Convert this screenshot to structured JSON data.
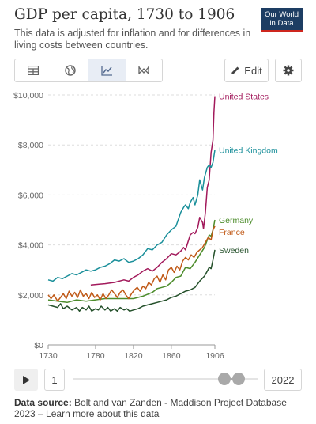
{
  "header": {
    "title": "GDP per capita, 1730 to 1906",
    "subtitle": "This data is adjusted for inflation and for differences in living costs between countries.",
    "logo_line1": "Our World",
    "logo_line2": "in Data"
  },
  "toolbar": {
    "tabs": [
      {
        "name": "table",
        "icon": "table-icon"
      },
      {
        "name": "map",
        "icon": "globe-icon"
      },
      {
        "name": "chart",
        "icon": "line-chart-icon",
        "active": true
      },
      {
        "name": "marimekko",
        "icon": "marimekko-icon"
      }
    ],
    "edit_label": "Edit",
    "settings_icon": "gear-icon"
  },
  "timeline": {
    "start_year": "1",
    "end_year": "2022"
  },
  "source": {
    "label": "Data source:",
    "text": "Bolt and van Zanden - Maddison Project Database 2023 –",
    "link_text": "Learn more about this data"
  },
  "chart_data": {
    "type": "line",
    "title": "GDP per capita, 1730 to 1906",
    "xlim": [
      1730,
      1906
    ],
    "ylim": [
      0,
      10000
    ],
    "yticks": [
      0,
      2000,
      4000,
      6000,
      8000,
      10000
    ],
    "ytick_labels": [
      "$0",
      "$2,000",
      "$4,000",
      "$6,000",
      "$8,000",
      "$10,000"
    ],
    "xticks": [
      1730,
      1780,
      1820,
      1860,
      1906
    ],
    "xtick_labels": [
      "1730",
      "1780",
      "1820",
      "1860",
      "1906"
    ],
    "grid": "horizontal dashed",
    "legend": "line-end labels",
    "series": [
      {
        "name": "United States",
        "color": "#a2195b",
        "points": [
          [
            1775,
            2400
          ],
          [
            1790,
            2450
          ],
          [
            1800,
            2500
          ],
          [
            1810,
            2600
          ],
          [
            1815,
            2550
          ],
          [
            1820,
            2700
          ],
          [
            1825,
            2800
          ],
          [
            1830,
            2950
          ],
          [
            1835,
            3050
          ],
          [
            1840,
            2950
          ],
          [
            1845,
            3100
          ],
          [
            1850,
            3300
          ],
          [
            1855,
            3450
          ],
          [
            1860,
            3650
          ],
          [
            1865,
            3600
          ],
          [
            1870,
            3750
          ],
          [
            1873,
            3900
          ],
          [
            1875,
            3800
          ],
          [
            1880,
            4400
          ],
          [
            1883,
            4500
          ],
          [
            1885,
            4450
          ],
          [
            1888,
            4700
          ],
          [
            1890,
            5100
          ],
          [
            1893,
            4900
          ],
          [
            1894,
            4650
          ],
          [
            1896,
            5300
          ],
          [
            1898,
            6300
          ],
          [
            1900,
            6600
          ],
          [
            1902,
            7700
          ],
          [
            1904,
            8200
          ],
          [
            1905,
            9300
          ],
          [
            1906,
            9950
          ]
        ]
      },
      {
        "name": "United Kingdom",
        "color": "#1a8f9a",
        "points": [
          [
            1730,
            2600
          ],
          [
            1735,
            2550
          ],
          [
            1740,
            2700
          ],
          [
            1745,
            2650
          ],
          [
            1750,
            2750
          ],
          [
            1755,
            2850
          ],
          [
            1760,
            2800
          ],
          [
            1765,
            2900
          ],
          [
            1770,
            3000
          ],
          [
            1775,
            2950
          ],
          [
            1780,
            3000
          ],
          [
            1785,
            3100
          ],
          [
            1790,
            3150
          ],
          [
            1795,
            3250
          ],
          [
            1800,
            3400
          ],
          [
            1805,
            3350
          ],
          [
            1810,
            3450
          ],
          [
            1815,
            3300
          ],
          [
            1820,
            3350
          ],
          [
            1825,
            3450
          ],
          [
            1830,
            3600
          ],
          [
            1835,
            3850
          ],
          [
            1840,
            3800
          ],
          [
            1845,
            4000
          ],
          [
            1850,
            4100
          ],
          [
            1855,
            4400
          ],
          [
            1860,
            4600
          ],
          [
            1865,
            4750
          ],
          [
            1870,
            5300
          ],
          [
            1873,
            5500
          ],
          [
            1875,
            5600
          ],
          [
            1878,
            5450
          ],
          [
            1880,
            5700
          ],
          [
            1883,
            5900
          ],
          [
            1885,
            5600
          ],
          [
            1888,
            6000
          ],
          [
            1890,
            6600
          ],
          [
            1893,
            6200
          ],
          [
            1895,
            6700
          ],
          [
            1898,
            7100
          ],
          [
            1900,
            7200
          ],
          [
            1902,
            7100
          ],
          [
            1904,
            7300
          ],
          [
            1906,
            7800
          ]
        ]
      },
      {
        "name": "Germany",
        "color": "#4c8c2b",
        "points": [
          [
            1730,
            1800
          ],
          [
            1740,
            1750
          ],
          [
            1750,
            1700
          ],
          [
            1760,
            1800
          ],
          [
            1770,
            1750
          ],
          [
            1780,
            1800
          ],
          [
            1790,
            1850
          ],
          [
            1800,
            1850
          ],
          [
            1810,
            1850
          ],
          [
            1820,
            1850
          ],
          [
            1830,
            1950
          ],
          [
            1840,
            2100
          ],
          [
            1845,
            2250
          ],
          [
            1850,
            2300
          ],
          [
            1855,
            2350
          ],
          [
            1860,
            2500
          ],
          [
            1865,
            2700
          ],
          [
            1870,
            2750
          ],
          [
            1875,
            3100
          ],
          [
            1880,
            3050
          ],
          [
            1885,
            3300
          ],
          [
            1890,
            3600
          ],
          [
            1895,
            3900
          ],
          [
            1898,
            4200
          ],
          [
            1900,
            4400
          ],
          [
            1902,
            4350
          ],
          [
            1904,
            4600
          ],
          [
            1906,
            5000
          ]
        ]
      },
      {
        "name": "France",
        "color": "#c05917",
        "points": [
          [
            1730,
            2000
          ],
          [
            1733,
            1850
          ],
          [
            1736,
            2000
          ],
          [
            1740,
            1750
          ],
          [
            1743,
            1900
          ],
          [
            1746,
            2050
          ],
          [
            1749,
            1850
          ],
          [
            1752,
            2150
          ],
          [
            1755,
            1950
          ],
          [
            1758,
            2100
          ],
          [
            1761,
            1900
          ],
          [
            1764,
            2200
          ],
          [
            1767,
            1950
          ],
          [
            1770,
            2050
          ],
          [
            1773,
            1850
          ],
          [
            1776,
            2100
          ],
          [
            1779,
            1900
          ],
          [
            1782,
            2000
          ],
          [
            1785,
            1800
          ],
          [
            1788,
            2050
          ],
          [
            1791,
            1850
          ],
          [
            1794,
            2000
          ],
          [
            1797,
            2200
          ],
          [
            1800,
            2050
          ],
          [
            1803,
            1900
          ],
          [
            1806,
            2100
          ],
          [
            1809,
            2200
          ],
          [
            1812,
            2000
          ],
          [
            1815,
            1850
          ],
          [
            1818,
            2050
          ],
          [
            1821,
            2200
          ],
          [
            1824,
            2300
          ],
          [
            1827,
            2150
          ],
          [
            1830,
            2350
          ],
          [
            1833,
            2250
          ],
          [
            1836,
            2500
          ],
          [
            1839,
            2400
          ],
          [
            1842,
            2650
          ],
          [
            1845,
            2750
          ],
          [
            1848,
            2500
          ],
          [
            1851,
            2800
          ],
          [
            1854,
            2600
          ],
          [
            1857,
            3000
          ],
          [
            1860,
            3100
          ],
          [
            1863,
            2900
          ],
          [
            1866,
            3150
          ],
          [
            1869,
            3000
          ],
          [
            1872,
            3350
          ],
          [
            1875,
            3500
          ],
          [
            1878,
            3400
          ],
          [
            1881,
            3600
          ],
          [
            1884,
            3500
          ],
          [
            1887,
            3700
          ],
          [
            1890,
            3800
          ],
          [
            1893,
            3900
          ],
          [
            1896,
            4100
          ],
          [
            1899,
            4300
          ],
          [
            1902,
            4200
          ],
          [
            1904,
            4600
          ],
          [
            1906,
            4750
          ]
        ]
      },
      {
        "name": "Sweden",
        "color": "#24502a",
        "points": [
          [
            1730,
            1600
          ],
          [
            1735,
            1550
          ],
          [
            1740,
            1500
          ],
          [
            1743,
            1650
          ],
          [
            1746,
            1450
          ],
          [
            1750,
            1550
          ],
          [
            1755,
            1400
          ],
          [
            1760,
            1500
          ],
          [
            1763,
            1350
          ],
          [
            1766,
            1500
          ],
          [
            1770,
            1400
          ],
          [
            1773,
            1550
          ],
          [
            1776,
            1350
          ],
          [
            1780,
            1450
          ],
          [
            1783,
            1400
          ],
          [
            1786,
            1550
          ],
          [
            1790,
            1400
          ],
          [
            1793,
            1500
          ],
          [
            1796,
            1350
          ],
          [
            1800,
            1450
          ],
          [
            1803,
            1350
          ],
          [
            1806,
            1500
          ],
          [
            1810,
            1400
          ],
          [
            1813,
            1450
          ],
          [
            1816,
            1350
          ],
          [
            1820,
            1400
          ],
          [
            1825,
            1450
          ],
          [
            1830,
            1550
          ],
          [
            1835,
            1600
          ],
          [
            1840,
            1650
          ],
          [
            1845,
            1700
          ],
          [
            1850,
            1750
          ],
          [
            1855,
            1800
          ],
          [
            1860,
            1900
          ],
          [
            1865,
            1950
          ],
          [
            1870,
            2050
          ],
          [
            1875,
            2150
          ],
          [
            1880,
            2200
          ],
          [
            1885,
            2300
          ],
          [
            1890,
            2550
          ],
          [
            1895,
            2750
          ],
          [
            1898,
            2950
          ],
          [
            1900,
            3100
          ],
          [
            1902,
            3050
          ],
          [
            1904,
            3400
          ],
          [
            1906,
            3800
          ]
        ]
      }
    ]
  }
}
